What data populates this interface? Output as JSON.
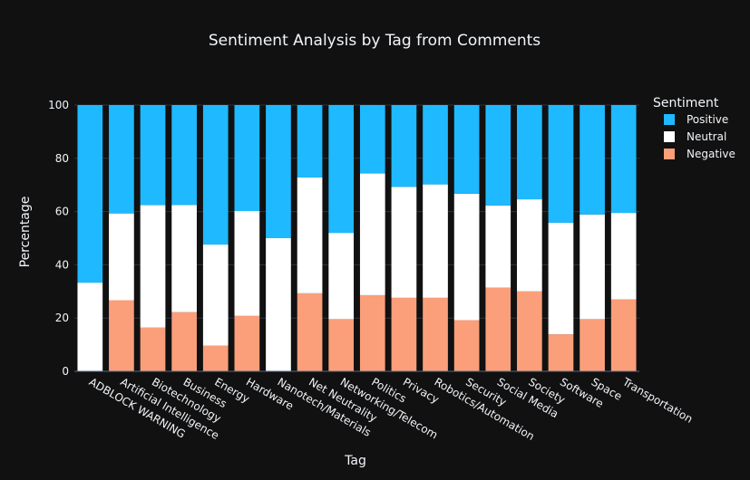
{
  "chart_data": {
    "type": "bar",
    "stacked": true,
    "title": "Sentiment Analysis by Tag from Comments",
    "xlabel": "Tag",
    "ylabel": "Percentage",
    "ylim": [
      0,
      100
    ],
    "yticks": [
      0,
      20,
      40,
      60,
      80,
      100
    ],
    "grid": true,
    "legend": {
      "title": "Sentiment",
      "placement": "top-right"
    },
    "categories": [
      "ADBLOCK WARNING",
      "Artificial Intelligence",
      "Biotechnology",
      "Business",
      "Energy",
      "Hardware",
      "Nanotech/Materials",
      "Net Neutrality",
      "Networking/Telecom",
      "Politics",
      "Privacy",
      "Robotics/Automation",
      "Security",
      "Social Media",
      "Society",
      "Software",
      "Space",
      "Transportation"
    ],
    "series": [
      {
        "name": "Negative",
        "color": "#fa9f7a",
        "values": [
          0,
          26.7,
          16.4,
          22.2,
          9.6,
          20.8,
          0,
          29.3,
          19.6,
          28.6,
          27.6,
          27.6,
          19.2,
          31.4,
          30.0,
          13.9,
          19.6,
          27.0
        ]
      },
      {
        "name": "Neutral",
        "color": "#ffffff",
        "values": [
          33.3,
          32.6,
          46.0,
          40.3,
          38.0,
          39.4,
          50.0,
          43.5,
          32.4,
          45.7,
          41.7,
          42.6,
          47.5,
          30.9,
          34.6,
          41.9,
          39.3,
          32.5
        ]
      },
      {
        "name": "Positive",
        "color": "#1fb9ff",
        "values": [
          66.7,
          40.7,
          37.6,
          37.5,
          52.4,
          39.8,
          50.0,
          27.2,
          48.0,
          25.7,
          30.7,
          29.8,
          33.3,
          37.7,
          35.4,
          44.2,
          41.1,
          40.5
        ]
      }
    ],
    "legend_order": [
      "Positive",
      "Neutral",
      "Negative"
    ]
  }
}
